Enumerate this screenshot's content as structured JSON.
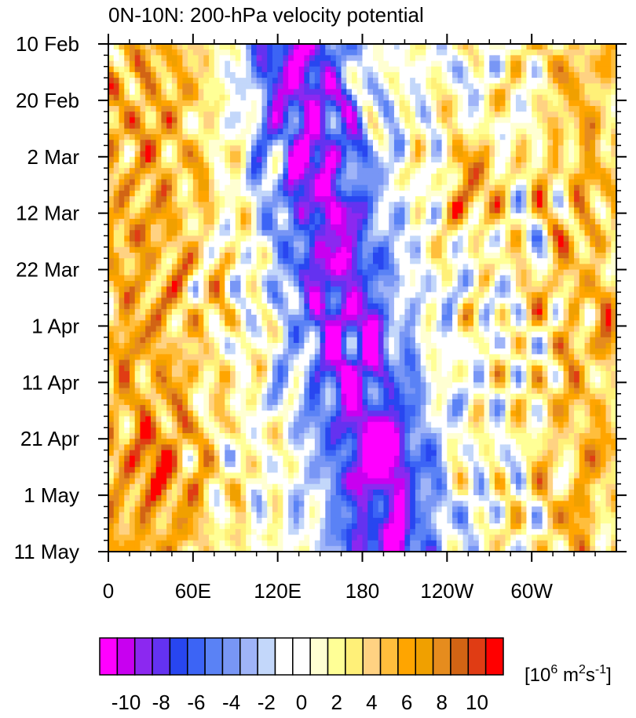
{
  "chart_data": {
    "type": "heatmap",
    "title": "0N-10N: 200-hPa velocity potential",
    "xlabel": "",
    "ylabel": "",
    "x_tick_labels": [
      "0",
      "60E",
      "120E",
      "180",
      "120W",
      "60W"
    ],
    "x_tick_values_deg_east": [
      0,
      60,
      120,
      180,
      240,
      300
    ],
    "xlim_deg_east": [
      0,
      360
    ],
    "y_tick_labels": [
      "10 Feb",
      "20 Feb",
      "2 Mar",
      "12 Mar",
      "22 Mar",
      "1 Apr",
      "11 Apr",
      "21 Apr",
      "1 May",
      "11 May"
    ],
    "y_tick_values_day": [
      0,
      10,
      20,
      30,
      40,
      50,
      60,
      70,
      80,
      90
    ],
    "ylim_day": [
      0,
      90
    ],
    "colorbar": {
      "levels": [
        -11,
        -10,
        -9,
        -8,
        -7,
        -6,
        -5,
        -4,
        -3,
        -2,
        -1,
        0,
        1,
        2,
        3,
        4,
        5,
        6,
        7,
        8,
        9,
        10,
        11
      ],
      "tick_labels": [
        "-10",
        "-8",
        "-6",
        "-4",
        "-2",
        "0",
        "2",
        "4",
        "6",
        "8",
        "10"
      ],
      "units_base": "[10",
      "units_exp1": "6",
      "units_mid": " m",
      "units_exp2": "2",
      "units_s": "s",
      "units_exp3": "-1",
      "units_close": "]",
      "colors": [
        "#ff00ff",
        "#c800f0",
        "#8c28f0",
        "#6432f0",
        "#2846f0",
        "#3c64f5",
        "#5a82f5",
        "#7896f5",
        "#9fb4f8",
        "#c3d7fa",
        "#ffffff",
        "#ffffff",
        "#ffffd2",
        "#ffff96",
        "#fff078",
        "#ffd282",
        "#ffbe3c",
        "#ffa500",
        "#f0a000",
        "#e68c1e",
        "#d26414",
        "#e03c14",
        "#ff0000"
      ]
    },
    "field_description": "Hovmoller diagram; negative velocity potential core centered near 120E-150E, drifting eastward in April-May; positive anomalies west of 60E and near 120W in early March."
  }
}
